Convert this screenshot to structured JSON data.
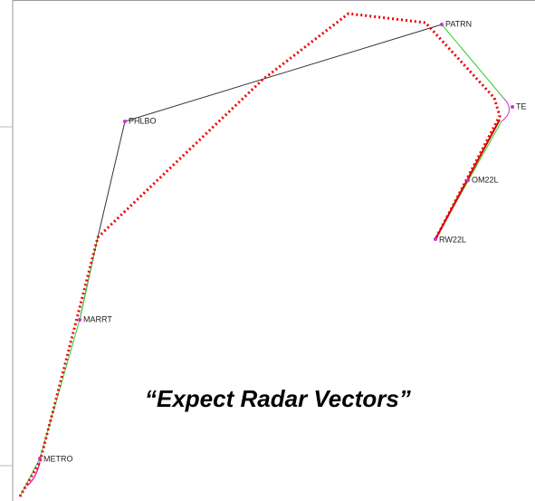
{
  "waypoints": [
    "PATRN",
    "TE",
    "PHLBO",
    "OM22L",
    "RW22L",
    "MARRT",
    "METRO"
  ],
  "caption": "“Expect Radar Vectors”"
}
